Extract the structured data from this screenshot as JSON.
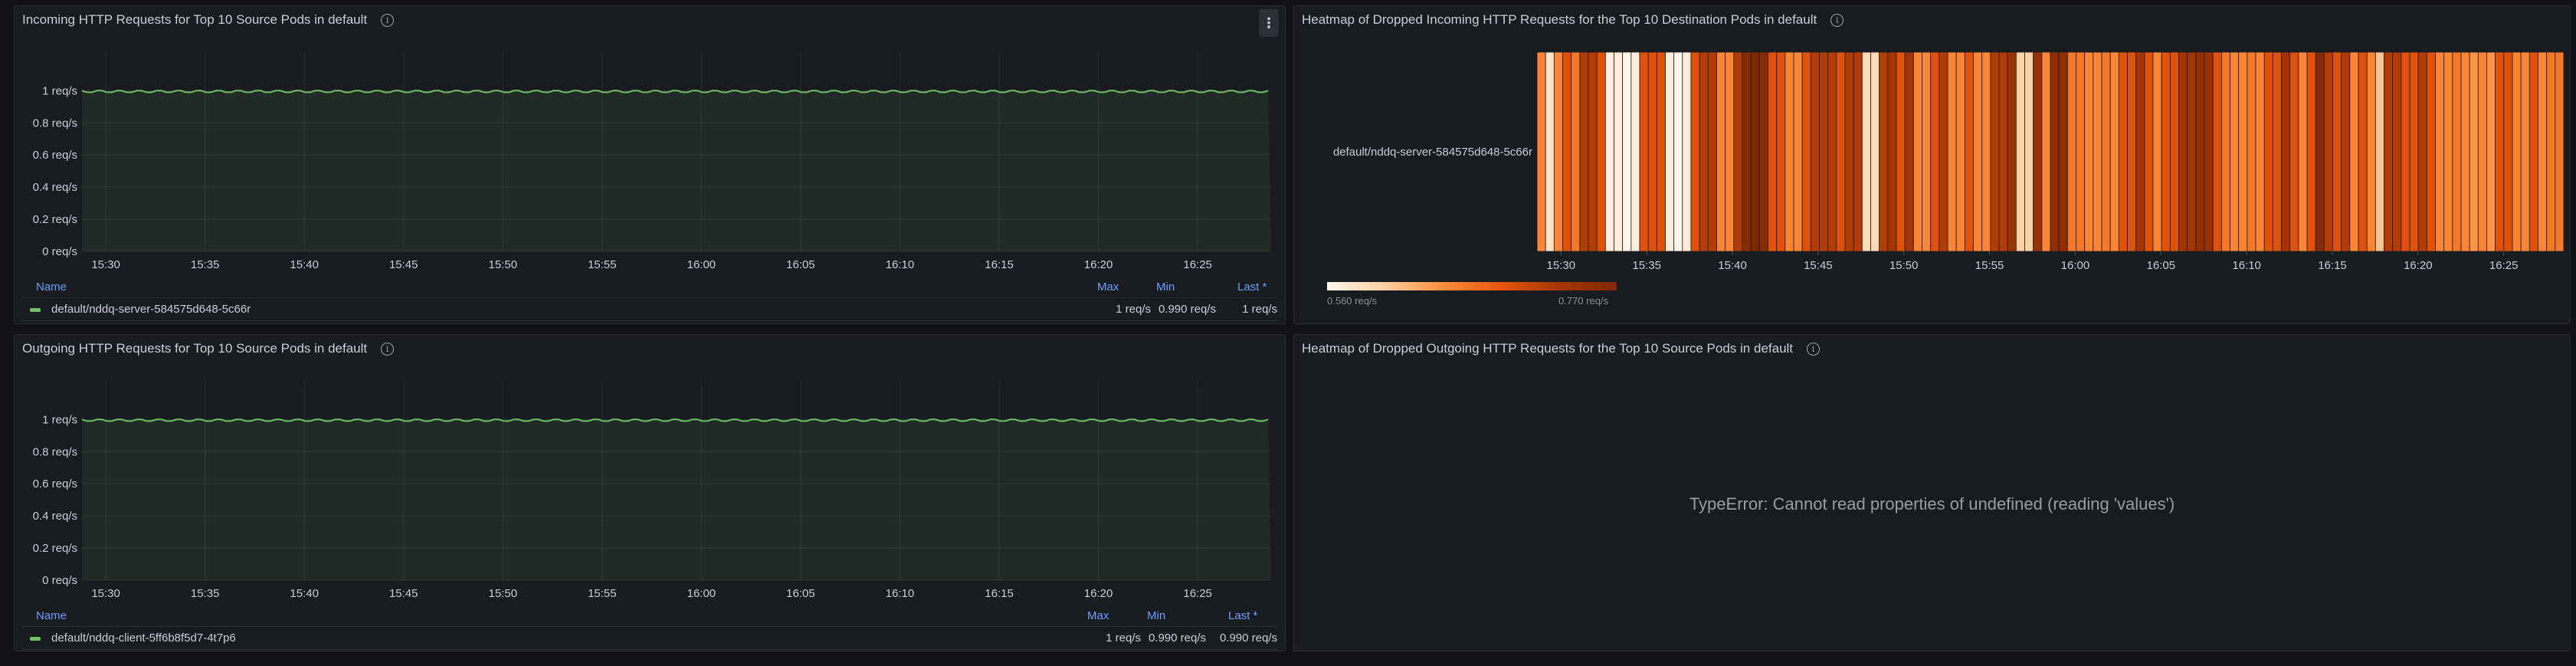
{
  "panels": {
    "incoming": {
      "title": "Incoming HTTP Requests for Top 10 Source Pods in default",
      "menu_icon": "⋮",
      "legend": {
        "headers": {
          "name": "Name",
          "max": "Max",
          "min": "Min",
          "last": "Last *"
        },
        "rows": [
          {
            "name": "default/nddq-server-584575d648-5c66r",
            "max": "1 req/s",
            "min": "0.990 req/s",
            "last": "1 req/s",
            "color": "#73bf69"
          }
        ]
      }
    },
    "outgoing": {
      "title": "Outgoing HTTP Requests for Top 10 Source Pods in default",
      "legend": {
        "headers": {
          "name": "Name",
          "max": "Max",
          "min": "Min",
          "last": "Last *"
        },
        "rows": [
          {
            "name": "default/nddq-client-5ff6b8f5d7-4t7p6",
            "max": "1 req/s",
            "min": "0.990 req/s",
            "last": "0.990 req/s",
            "color": "#73bf69"
          }
        ]
      }
    },
    "heatmap_in": {
      "title": "Heatmap of Dropped Incoming HTTP Requests for the Top 10 Destination Pods in default",
      "scale_min_label": "0.560 req/s",
      "scale_max_label": "0.770 req/s"
    },
    "heatmap_out": {
      "title": "Heatmap of Dropped Outgoing HTTP Requests for the Top 10 Source Pods in default",
      "error": "TypeError: Cannot read properties of undefined (reading 'values')"
    }
  },
  "chart_data": [
    {
      "id": "incoming",
      "type": "line",
      "xlabel": "",
      "ylabel": "",
      "x_ticks": [
        "15:30",
        "15:35",
        "15:40",
        "15:45",
        "15:50",
        "15:55",
        "16:00",
        "16:05",
        "16:10",
        "16:15",
        "16:20",
        "16:25"
      ],
      "x_tick_minutes": [
        30,
        35,
        40,
        45,
        50,
        55,
        60,
        65,
        70,
        75,
        80,
        85
      ],
      "xlim_minutes": [
        28.8,
        88.7
      ],
      "y_ticks": [
        "0 req/s",
        "0.2 req/s",
        "0.4 req/s",
        "0.6 req/s",
        "0.8 req/s",
        "1 req/s"
      ],
      "y_tick_values": [
        0,
        0.2,
        0.4,
        0.6,
        0.8,
        1
      ],
      "ylim": [
        0,
        1.24
      ],
      "series": [
        {
          "name": "default/nddq-server-584575d648-5c66r",
          "color": "#73bf69",
          "pattern": [
            1,
            0.99,
            0.99,
            1
          ],
          "step_minutes": 0.5
        }
      ]
    },
    {
      "id": "outgoing",
      "type": "line",
      "x_ticks": [
        "15:30",
        "15:35",
        "15:40",
        "15:45",
        "15:50",
        "15:55",
        "16:00",
        "16:05",
        "16:10",
        "16:15",
        "16:20",
        "16:25"
      ],
      "x_tick_minutes": [
        30,
        35,
        40,
        45,
        50,
        55,
        60,
        65,
        70,
        75,
        80,
        85
      ],
      "xlim_minutes": [
        28.8,
        88.7
      ],
      "y_ticks": [
        "0 req/s",
        "0.2 req/s",
        "0.4 req/s",
        "0.6 req/s",
        "0.8 req/s",
        "1 req/s"
      ],
      "y_tick_values": [
        0,
        0.2,
        0.4,
        0.6,
        0.8,
        1
      ],
      "ylim": [
        0,
        1.24
      ],
      "series": [
        {
          "name": "default/nddq-client-5ff6b8f5d7-4t7p6",
          "color": "#73bf69",
          "pattern": [
            1,
            0.99,
            0.99,
            1
          ],
          "step_minutes": 0.5
        }
      ]
    },
    {
      "id": "heatmap_in",
      "type": "heatmap",
      "y_categories": [
        "default/nddq-server-584575d648-5c66r"
      ],
      "x_ticks": [
        "15:30",
        "15:35",
        "15:40",
        "15:45",
        "15:50",
        "15:55",
        "16:00",
        "16:05",
        "16:10",
        "16:15",
        "16:20",
        "16:25"
      ],
      "x_tick_minutes": [
        30,
        35,
        40,
        45,
        50,
        55,
        60,
        65,
        70,
        75,
        80,
        85
      ],
      "xlim_minutes": [
        28.6,
        88.5
      ],
      "color_range": [
        0.56,
        0.77
      ],
      "values": [
        0.65,
        0.58,
        0.65,
        0.69,
        0.66,
        0.72,
        0.72,
        0.69,
        0.57,
        0.57,
        0.56,
        0.57,
        0.69,
        0.69,
        0.69,
        0.57,
        0.56,
        0.57,
        0.69,
        0.72,
        0.72,
        0.65,
        0.65,
        0.72,
        0.76,
        0.77,
        0.76,
        0.69,
        0.69,
        0.65,
        0.65,
        0.69,
        0.72,
        0.72,
        0.72,
        0.69,
        0.72,
        0.72,
        0.59,
        0.59,
        0.72,
        0.73,
        0.69,
        0.73,
        0.65,
        0.65,
        0.69,
        0.72,
        0.65,
        0.65,
        0.69,
        0.65,
        0.65,
        0.72,
        0.72,
        0.74,
        0.6,
        0.6,
        0.74,
        0.65,
        0.75,
        0.75,
        0.66,
        0.66,
        0.65,
        0.65,
        0.66,
        0.65,
        0.69,
        0.69,
        0.73,
        0.69,
        0.65,
        0.69,
        0.69,
        0.73,
        0.73,
        0.75,
        0.74,
        0.69,
        0.66,
        0.65,
        0.65,
        0.66,
        0.65,
        0.69,
        0.69,
        0.73,
        0.69,
        0.65,
        0.69,
        0.76,
        0.72,
        0.69,
        0.72,
        0.65,
        0.69,
        0.65,
        0.61,
        0.72,
        0.72,
        0.69,
        0.69,
        0.72,
        0.69,
        0.65,
        0.65,
        0.66,
        0.65,
        0.64,
        0.65,
        0.64,
        0.69,
        0.69,
        0.65,
        0.65,
        0.69,
        0.65,
        0.66,
        0.66
      ]
    }
  ]
}
